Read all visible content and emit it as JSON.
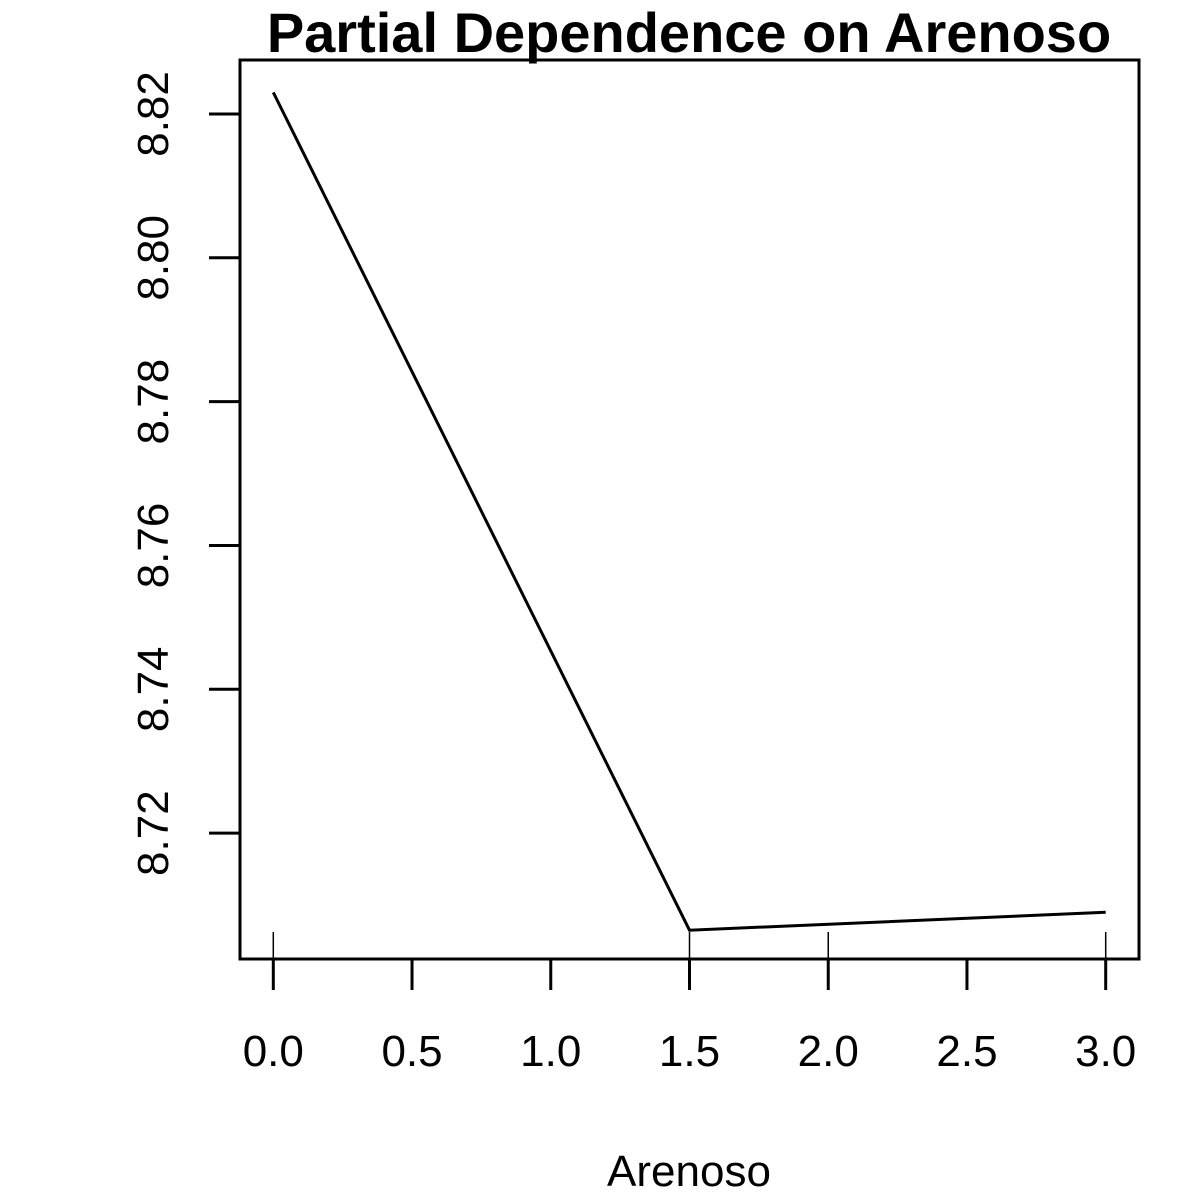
{
  "chart_data": {
    "type": "line",
    "title": "Partial Dependence on Arenoso",
    "xlabel": "Arenoso",
    "ylabel": "",
    "x": [
      0.0,
      1.5,
      3.0
    ],
    "series": [
      {
        "values": [
          8.823,
          8.7065,
          8.709
        ]
      }
    ],
    "xlim": [
      -0.12,
      3.12
    ],
    "ylim": [
      8.7025,
      8.8275
    ],
    "x_ticks": [
      0.0,
      0.5,
      1.0,
      1.5,
      2.0,
      2.5,
      3.0
    ],
    "x_tick_labels": [
      "0.0",
      "0.5",
      "1.0",
      "1.5",
      "2.0",
      "2.5",
      "3.0"
    ],
    "y_ticks": [
      8.72,
      8.74,
      8.76,
      8.78,
      8.8,
      8.82
    ],
    "y_tick_labels": [
      "8.72",
      "8.74",
      "8.76",
      "8.78",
      "8.80",
      "8.82"
    ],
    "rug": [
      0.0,
      1.5,
      2.0,
      3.0
    ],
    "grid": false,
    "line_color": "#000000"
  }
}
